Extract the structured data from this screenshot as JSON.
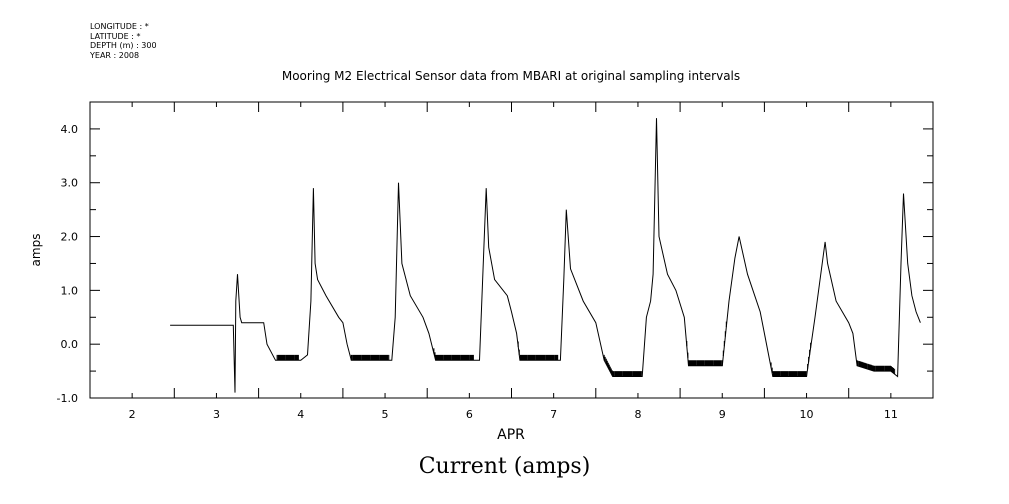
{
  "metadata": {
    "longitude": "LONGITUDE : *",
    "latitude": "LATITUDE : *",
    "depth": "DEPTH (m) : 300",
    "year": "YEAR : 2008"
  },
  "caption": "Current (amps)",
  "chart_data": {
    "type": "line",
    "title": "Mooring M2 Electrical Sensor data from MBARI at original sampling intervals",
    "xlabel": "APR",
    "ylabel": "amps",
    "xlim": [
      1.5,
      11.5
    ],
    "ylim": [
      -1.0,
      4.5
    ],
    "x_ticks": [
      2,
      3,
      4,
      5,
      6,
      7,
      8,
      9,
      10,
      11
    ],
    "x_tick_labels": [
      "2",
      "3",
      "4",
      "5",
      "6",
      "7",
      "8",
      "9",
      "10",
      "11"
    ],
    "y_ticks": [
      -1.0,
      0.0,
      1.0,
      2.0,
      3.0,
      4.0
    ],
    "y_tick_labels": [
      "-1.0",
      "0.0",
      "1.0",
      "2.0",
      "3.0",
      "4.0"
    ],
    "grid": false,
    "series": [
      {
        "x": [
          2.45,
          2.6,
          2.8,
          3.0,
          3.15,
          3.2,
          3.22,
          3.23,
          3.25,
          3.28,
          3.3,
          3.5,
          3.56,
          3.6,
          3.7,
          3.9,
          4.0,
          4.08,
          4.12,
          4.15,
          4.17,
          4.2,
          4.3,
          4.45,
          4.5,
          4.55,
          4.6,
          4.8,
          5.0,
          5.08,
          5.12,
          5.16,
          5.2,
          5.3,
          5.45,
          5.52,
          5.6,
          5.8,
          6.0,
          6.12,
          6.2,
          6.23,
          6.3,
          6.45,
          6.5,
          6.56,
          6.6,
          6.8,
          7.0,
          7.08,
          7.12,
          7.15,
          7.2,
          7.35,
          7.5,
          7.6,
          7.7,
          7.9,
          8.05,
          8.1,
          8.15,
          8.18,
          8.22,
          8.25,
          8.35,
          8.45,
          8.55,
          8.6,
          8.8,
          9.0,
          9.08,
          9.15,
          9.2,
          9.3,
          9.45,
          9.5,
          9.6,
          9.8,
          10.0,
          10.1,
          10.22,
          10.25,
          10.35,
          10.5,
          10.55,
          10.6,
          10.8,
          11.0,
          11.08,
          11.12,
          11.15,
          11.2,
          11.25,
          11.3,
          11.35
        ],
        "y": [
          0.35,
          0.35,
          0.35,
          0.35,
          0.35,
          0.35,
          -0.9,
          0.8,
          1.3,
          0.5,
          0.4,
          0.4,
          0.4,
          0.0,
          -0.3,
          -0.3,
          -0.3,
          -0.2,
          0.8,
          2.9,
          1.5,
          1.2,
          0.9,
          0.5,
          0.4,
          0.0,
          -0.3,
          -0.3,
          -0.3,
          -0.3,
          0.5,
          3.0,
          1.5,
          0.9,
          0.5,
          0.2,
          -0.3,
          -0.3,
          -0.3,
          -0.3,
          2.9,
          1.8,
          1.2,
          0.9,
          0.6,
          0.2,
          -0.3,
          -0.3,
          -0.3,
          -0.3,
          1.2,
          2.5,
          1.4,
          0.8,
          0.4,
          -0.3,
          -0.6,
          -0.6,
          -0.6,
          0.5,
          0.8,
          1.3,
          4.2,
          2.0,
          1.3,
          1.0,
          0.5,
          -0.4,
          -0.4,
          -0.4,
          0.8,
          1.6,
          2.0,
          1.3,
          0.6,
          0.2,
          -0.6,
          -0.6,
          -0.6,
          0.5,
          1.9,
          1.5,
          0.8,
          0.4,
          0.2,
          -0.4,
          -0.5,
          -0.5,
          -0.6,
          1.5,
          2.8,
          1.5,
          0.9,
          0.6,
          0.4
        ],
        "noise_intervals": [
          [
            3.72,
            3.98
          ],
          [
            4.6,
            5.05
          ],
          [
            5.58,
            6.05
          ],
          [
            6.58,
            7.05
          ],
          [
            7.6,
            8.05
          ],
          [
            8.58,
            9.05
          ],
          [
            9.58,
            10.05
          ],
          [
            10.6,
            11.05
          ]
        ]
      }
    ]
  }
}
